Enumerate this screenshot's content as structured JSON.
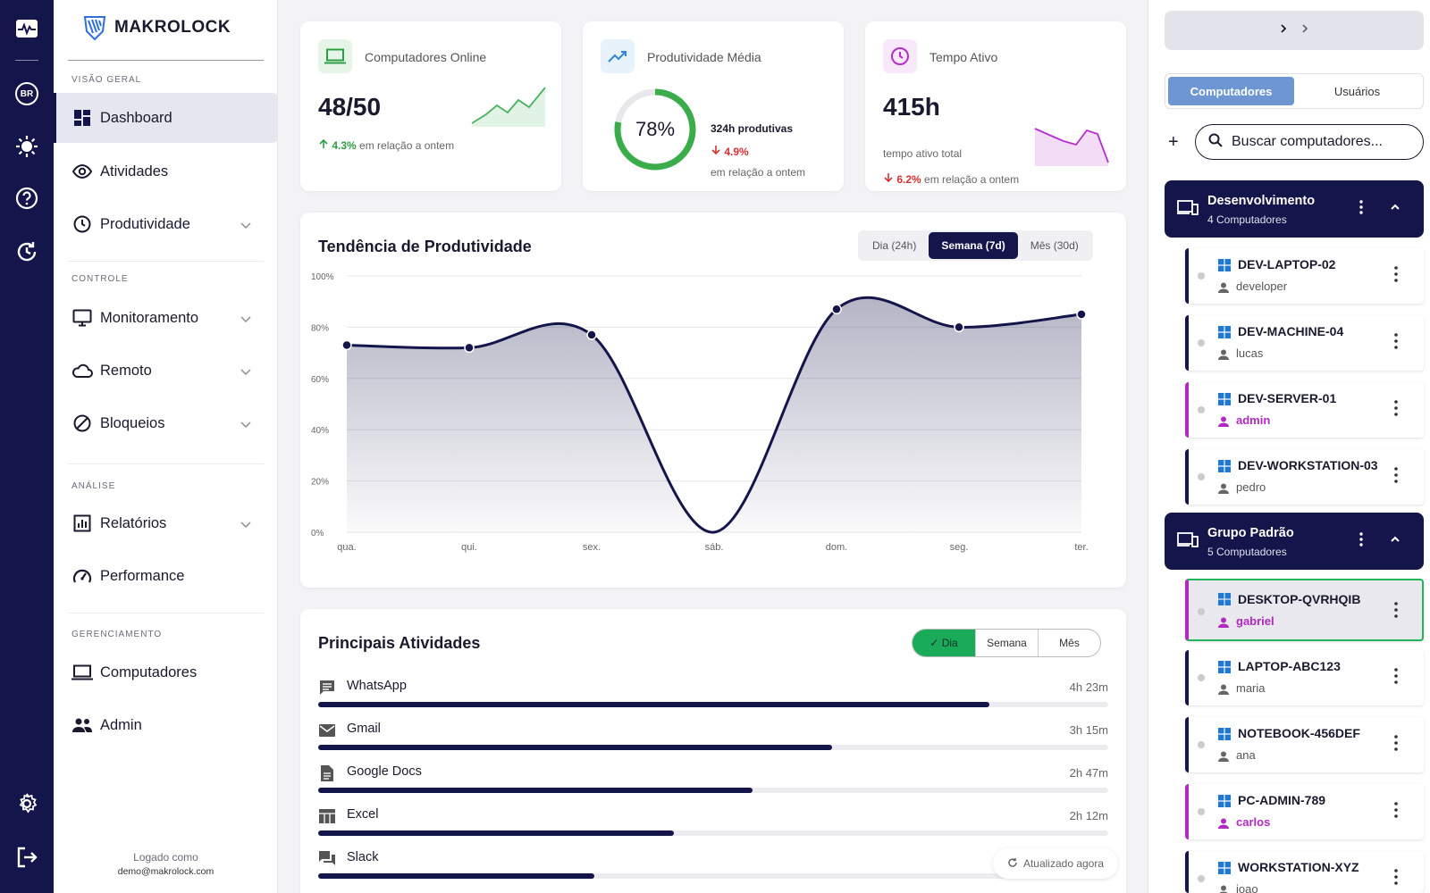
{
  "brand": {
    "name": "MAKROLOCK"
  },
  "rail": {
    "badge": "BR"
  },
  "sidebar": {
    "sections": [
      "VISÃO GERAL",
      "CONTROLE",
      "ANÁLISE",
      "GERENCIAMENTO"
    ],
    "items": [
      {
        "label": "Dashboard",
        "icon": "dashboard-icon",
        "active": true
      },
      {
        "label": "Atividades",
        "icon": "eye-icon"
      },
      {
        "label": "Produtividade",
        "icon": "clock-icon"
      },
      {
        "label": "Monitoramento",
        "icon": "monitor-icon"
      },
      {
        "label": "Remoto",
        "icon": "cloud-icon"
      },
      {
        "label": "Bloqueios",
        "icon": "block-icon"
      },
      {
        "label": "Relatórios",
        "icon": "report-icon"
      },
      {
        "label": "Performance",
        "icon": "speedometer-icon"
      },
      {
        "label": "Computadores",
        "icon": "laptop-icon"
      },
      {
        "label": "Admin",
        "icon": "people-icon"
      }
    ],
    "login_label": "Logado como",
    "login_email": "demo@makrolock.com"
  },
  "kpis": {
    "online": {
      "title": "Computadores Online",
      "value": "48/50",
      "delta": "4.3%",
      "delta_text": "em relação a ontem",
      "color": "#2e9e45"
    },
    "prod": {
      "title": "Produtividade Média",
      "value": "78%",
      "percent": 78,
      "hours": "324h produtivas",
      "delta": "4.9%",
      "delta_text": "em relação a ontem",
      "color": "#3aad4a"
    },
    "active": {
      "title": "Tempo Ativo",
      "value": "415h",
      "sub": "tempo ativo total",
      "delta": "6.2%",
      "delta_text": "em relação a ontem",
      "color": "#b52fcc"
    }
  },
  "trend": {
    "title": "Tendência de Produtividade",
    "tabs": [
      "Dia (24h)",
      "Semana (7d)",
      "Mês (30d)"
    ],
    "active_tab": "Semana (7d)"
  },
  "chart_data": {
    "type": "area",
    "categories": [
      "qua.",
      "qui.",
      "sex.",
      "sáb.",
      "dom.",
      "seg.",
      "ter."
    ],
    "values": [
      73,
      72,
      77,
      0,
      87,
      80,
      85
    ],
    "y_ticks": [
      "0%",
      "20%",
      "40%",
      "60%",
      "80%",
      "100%"
    ],
    "ylim": [
      0,
      100
    ],
    "grid": true,
    "color": "#14154a"
  },
  "activities": {
    "title": "Principais Atividades",
    "filters": [
      "Dia",
      "Semana",
      "Mês"
    ],
    "active_filter": "Dia",
    "items": [
      {
        "name": "WhatsApp",
        "time": "4h 23m",
        "icon": "chat-icon",
        "ratio": 0.85
      },
      {
        "name": "Gmail",
        "time": "3h 15m",
        "icon": "mail-icon",
        "ratio": 0.65
      },
      {
        "name": "Google Docs",
        "time": "2h 47m",
        "icon": "document-icon",
        "ratio": 0.55
      },
      {
        "name": "Excel",
        "time": "2h 12m",
        "icon": "table-icon",
        "ratio": 0.45
      },
      {
        "name": "Slack",
        "time": "",
        "icon": "forum-icon",
        "ratio": 0.35
      }
    ],
    "updated": "Atualizado agora"
  },
  "right": {
    "tabs": [
      "Computadores",
      "Usuários"
    ],
    "active_tab": "Computadores",
    "search_placeholder": "Buscar computadores...",
    "groups": [
      {
        "name": "Desenvolvimento",
        "count": "4 Computadores",
        "computers": [
          {
            "name": "DEV-LAPTOP-02",
            "user": "developer",
            "admin": false
          },
          {
            "name": "DEV-MACHINE-04",
            "user": "lucas",
            "admin": false
          },
          {
            "name": "DEV-SERVER-01",
            "user": "admin",
            "admin": true
          },
          {
            "name": "DEV-WORKSTATION-03",
            "user": "pedro",
            "admin": false
          }
        ]
      },
      {
        "name": "Grupo Padrão",
        "count": "5 Computadores",
        "computers": [
          {
            "name": "DESKTOP-QVRHQIB",
            "user": "gabriel",
            "admin": true,
            "selected": true
          },
          {
            "name": "LAPTOP-ABC123",
            "user": "maria",
            "admin": false
          },
          {
            "name": "NOTEBOOK-456DEF",
            "user": "ana",
            "admin": false
          },
          {
            "name": "PC-ADMIN-789",
            "user": "carlos",
            "admin": true
          },
          {
            "name": "WORKSTATION-XYZ",
            "user": "joao",
            "admin": false
          }
        ]
      }
    ]
  }
}
